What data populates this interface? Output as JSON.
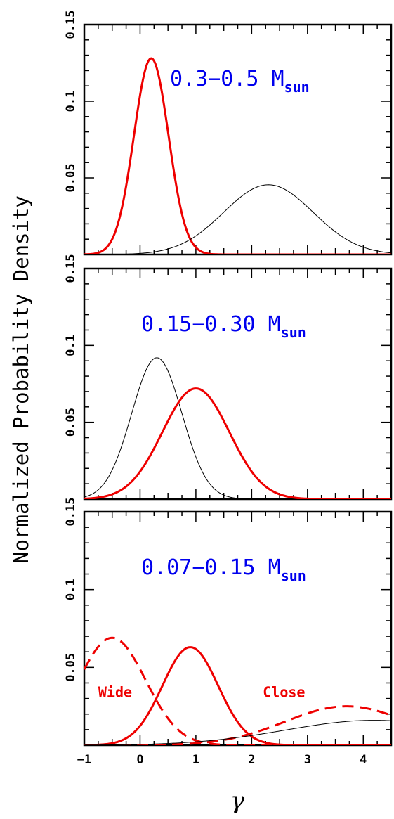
{
  "figure": {
    "ylabel": "Normalized Probability Density",
    "xlabel": "γ",
    "colors": {
      "red": "#ee0000",
      "black": "#000000",
      "blue": "#0000ee"
    }
  },
  "chart_data": [
    {
      "type": "line",
      "label_main": "0.3−0.5 M",
      "label_sub": "sun",
      "xlim": [
        -1,
        4.5
      ],
      "ylim": [
        0,
        0.15
      ],
      "y_ticks": [
        "0.15",
        "0.1",
        "0.05"
      ],
      "x_ticks": [],
      "series": [
        {
          "color": "red",
          "style": "solid",
          "width": "thick",
          "mu": 0.2,
          "sigma": 0.31,
          "peak": 0.128
        },
        {
          "color": "black",
          "style": "solid",
          "width": "thin",
          "mu": 2.3,
          "sigma": 0.8,
          "peak": 0.0455
        }
      ],
      "annotations": []
    },
    {
      "type": "line",
      "label_main": "0.15−0.30 M",
      "label_sub": "sun",
      "xlim": [
        -1,
        4.5
      ],
      "ylim": [
        0,
        0.15
      ],
      "y_ticks": [
        "0.15",
        "0.1",
        "0.05"
      ],
      "x_ticks": [],
      "series": [
        {
          "color": "black",
          "style": "solid",
          "width": "thin",
          "mu": 0.3,
          "sigma": 0.45,
          "peak": 0.092
        },
        {
          "color": "red",
          "style": "solid",
          "width": "thick",
          "mu": 1.0,
          "sigma": 0.6,
          "peak": 0.072
        }
      ],
      "annotations": []
    },
    {
      "type": "line",
      "label_main": "0.07−0.15 M",
      "label_sub": "sun",
      "xlim": [
        -1,
        4.5
      ],
      "ylim": [
        0,
        0.15
      ],
      "y_ticks": [
        "0.15",
        "0.1",
        "0.05"
      ],
      "x_ticks": [
        "−1",
        "0",
        "1",
        "2",
        "3",
        "4"
      ],
      "series": [
        {
          "color": "red",
          "style": "dashed",
          "width": "thick",
          "mu": -0.5,
          "sigma": 0.6,
          "peak": 0.069
        },
        {
          "color": "red",
          "style": "solid",
          "width": "thick",
          "mu": 0.9,
          "sigma": 0.5,
          "peak": 0.063
        },
        {
          "color": "red",
          "style": "dashed",
          "width": "thick",
          "mu": 3.7,
          "sigma": 1.1,
          "peak": 0.025
        },
        {
          "color": "black",
          "style": "solid",
          "width": "thin",
          "mu": 4.2,
          "sigma": 1.6,
          "peak": 0.016
        }
      ],
      "annotations": [
        {
          "text": "Wide",
          "x": -0.75,
          "y": 0.041
        },
        {
          "text": "Close",
          "x": 2.2,
          "y": 0.041
        }
      ]
    }
  ]
}
